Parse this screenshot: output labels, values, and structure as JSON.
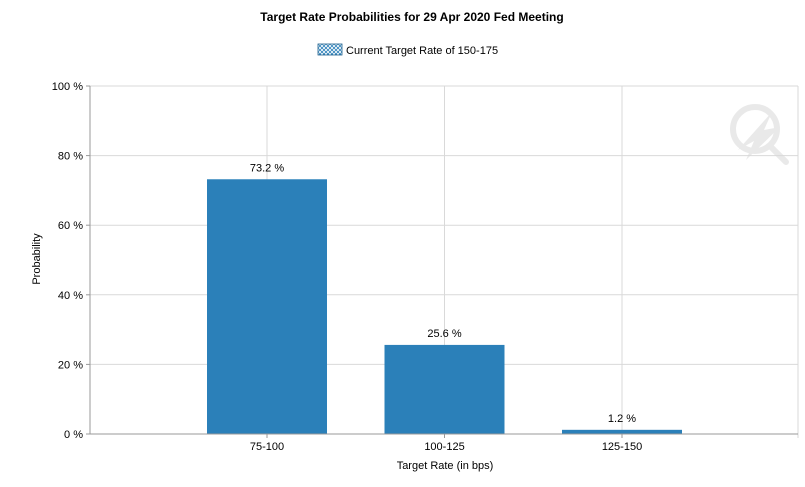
{
  "chart_data": {
    "type": "bar",
    "title": "Target Rate Probabilities for 29 Apr 2020 Fed Meeting",
    "legend": {
      "label": "Current Target Rate of 150-175",
      "placement": "top-center"
    },
    "xlabel": "Target Rate (in bps)",
    "ylabel": "Probability",
    "categories": [
      "75-100",
      "100-125",
      "125-150"
    ],
    "values": [
      73.2,
      25.6,
      1.2
    ],
    "data_labels": [
      "73.2 %",
      "25.6 %",
      "1.2 %"
    ],
    "ylim": [
      0,
      100
    ],
    "yticks": [
      0,
      20,
      40,
      60,
      80,
      100
    ],
    "ytick_labels": [
      "0 %",
      "20 %",
      "40 %",
      "60 %",
      "80 %",
      "100 %"
    ],
    "grid": true,
    "bar_color": "#2b80b9",
    "grid_color": "#d9d9d9"
  }
}
